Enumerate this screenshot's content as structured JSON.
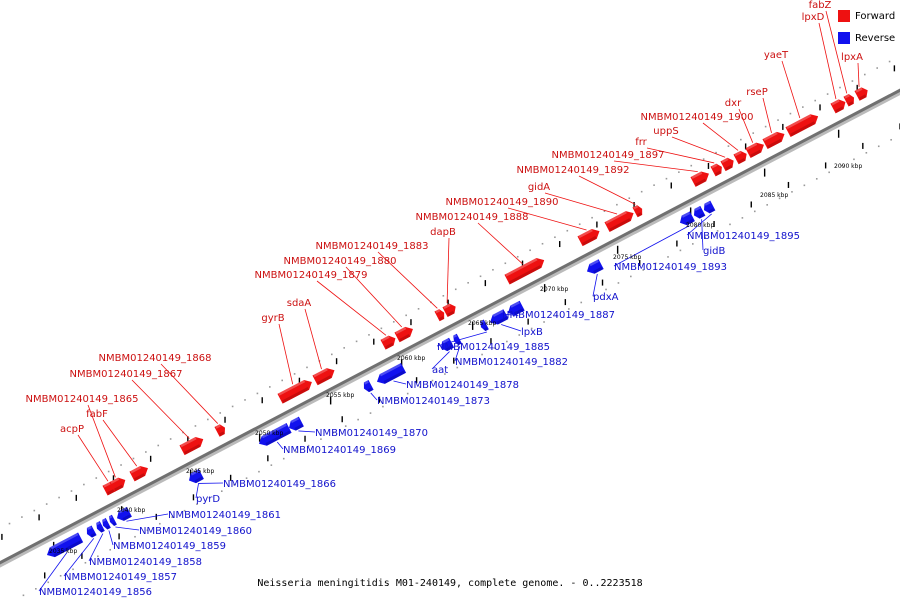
{
  "caption": "Neisseria meningitidis M01-240149, complete genome. - 0..2223518",
  "legend": {
    "forward": {
      "label": "Forward",
      "color": "#ee1111"
    },
    "reverse": {
      "label": "Reverse",
      "color": "#1111ee"
    }
  },
  "colors": {
    "backbone": "#888888",
    "forward": "#ee1111",
    "reverse": "#1111ee",
    "label_forward": "#cc1111",
    "label_reverse": "#1111cc"
  },
  "scale_labels": [
    "2035 kbp",
    "2040 kbp",
    "2045 kbp",
    "2050 kbp",
    "2055 kbp",
    "2060 kbp",
    "2065 kbp",
    "2070 kbp",
    "2075 kbp",
    "2080 kbp",
    "2085 kbp",
    "2090 kbp"
  ],
  "forward_genes": [
    "acpP",
    "fabF",
    "NMBM01240149_1865",
    "NMBM01240149_1867",
    "NMBM01240149_1868",
    "gyrB",
    "sdaA",
    "NMBM01240149_1879",
    "NMBM01240149_1880",
    "NMBM01240149_1883",
    "dapB",
    "NMBM01240149_1888",
    "NMBM01240149_1890",
    "gidA",
    "NMBM01240149_1892",
    "NMBM01240149_1897",
    "frr",
    "uppS",
    "NMBM01240149_1900",
    "dxr",
    "rseP",
    "yaeT",
    "lpxD",
    "fabZ",
    "lpxA"
  ],
  "reverse_genes": [
    "NMBM01240149_1856",
    "NMBM01240149_1857",
    "NMBM01240149_1858",
    "NMBM01240149_1859",
    "NMBM01240149_1860",
    "NMBM01240149_1861",
    "pyrD",
    "NMBM01240149_1866",
    "NMBM01240149_1869",
    "NMBM01240149_1870",
    "NMBM01240149_1873",
    "NMBM01240149_1878",
    "aat",
    "NMBM01240149_1882",
    "NMBM01240149_1885",
    "lpxB",
    "NMBM01240149_1887",
    "pdxA",
    "NMBM01240149_1893",
    "gidB",
    "NMBM01240149_1895"
  ]
}
